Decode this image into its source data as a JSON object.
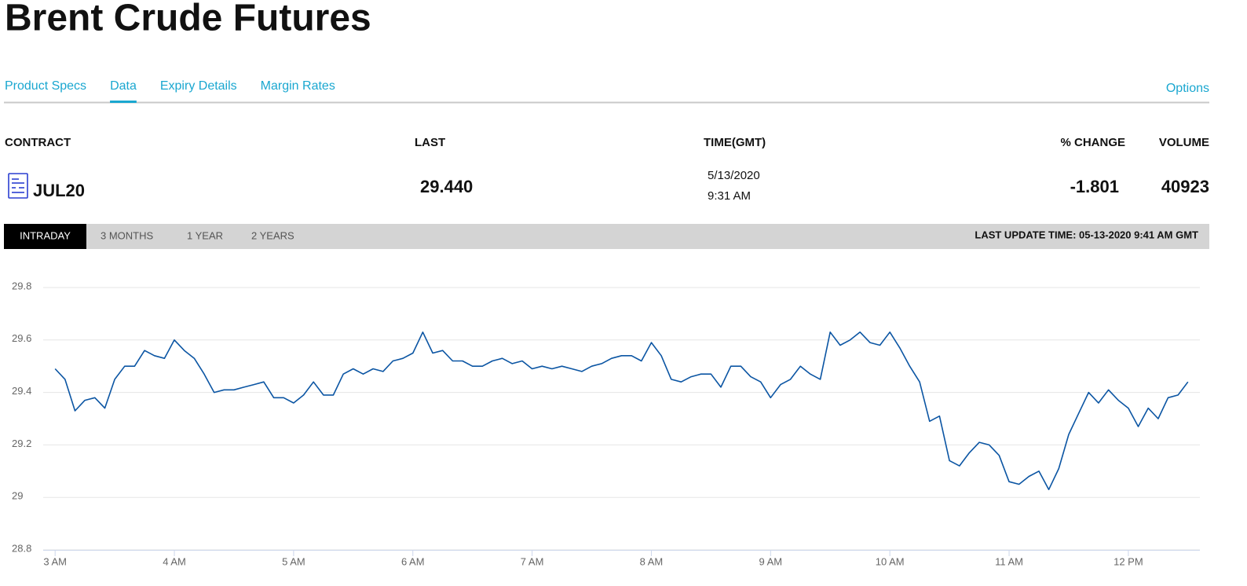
{
  "header": {
    "title": "Brent Crude Futures"
  },
  "tabs": [
    "Product Specs",
    "Data",
    "Expiry Details",
    "Margin Rates"
  ],
  "options": "Options",
  "table": {
    "headers": [
      "CONTRACT",
      "LAST",
      "TIME(GMT)",
      "% CHANGE",
      "VOLUME"
    ],
    "row": {
      "contract": "JUL20",
      "last": "29.440",
      "date": "5/13/2020",
      "time": "9:31 AM",
      "change": "-1.801",
      "volume": "40923"
    }
  },
  "ranges": [
    "INTRADAY",
    "3 MONTHS",
    "1 YEAR",
    "2 YEARS"
  ],
  "last_update": "LAST UPDATE TIME: 05-13-2020 9:41 AM GMT",
  "chart_data": {
    "type": "line",
    "color": "#0b55a3",
    "grid": true,
    "x": [
      180,
      185,
      190,
      195,
      200,
      205,
      210,
      215,
      220,
      225,
      230,
      235,
      240,
      245,
      250,
      255,
      260,
      265,
      270,
      275,
      280,
      285,
      290,
      295,
      300,
      305,
      310,
      315,
      320,
      325,
      330,
      335,
      340,
      345,
      350,
      355,
      360,
      365,
      370,
      375,
      380,
      385,
      390,
      395,
      400,
      405,
      410,
      415,
      420,
      425,
      430,
      435,
      440,
      445,
      450,
      455,
      460,
      465,
      470,
      475,
      480,
      485,
      490,
      495,
      500,
      505,
      510,
      515,
      520,
      525,
      530,
      535,
      540,
      545,
      550,
      555,
      560,
      565,
      570,
      575,
      580,
      585,
      590,
      595,
      600,
      605,
      610,
      615,
      620,
      625,
      630,
      635,
      640,
      645,
      650,
      655,
      660,
      665,
      670,
      675,
      680,
      685,
      690,
      695,
      700,
      705,
      710,
      715,
      720,
      725,
      730,
      735,
      740,
      745,
      750
    ],
    "values": [
      29.49,
      29.45,
      29.33,
      29.37,
      29.38,
      29.34,
      29.45,
      29.5,
      29.5,
      29.56,
      29.54,
      29.53,
      29.6,
      29.56,
      29.53,
      29.47,
      29.4,
      29.41,
      29.41,
      29.42,
      29.43,
      29.44,
      29.38,
      29.38,
      29.36,
      29.39,
      29.44,
      29.39,
      29.39,
      29.47,
      29.49,
      29.47,
      29.49,
      29.48,
      29.52,
      29.53,
      29.55,
      29.63,
      29.55,
      29.56,
      29.52,
      29.52,
      29.5,
      29.5,
      29.52,
      29.53,
      29.51,
      29.52,
      29.49,
      29.5,
      29.49,
      29.5,
      29.49,
      29.48,
      29.5,
      29.51,
      29.53,
      29.54,
      29.54,
      29.52,
      29.59,
      29.54,
      29.45,
      29.44,
      29.46,
      29.47,
      29.47,
      29.42,
      29.5,
      29.5,
      29.46,
      29.44,
      29.38,
      29.43,
      29.45,
      29.5,
      29.47,
      29.45,
      29.63,
      29.58,
      29.6,
      29.63,
      29.59,
      29.58,
      29.63,
      29.57,
      29.5,
      29.44,
      29.29,
      29.31,
      29.14,
      29.12,
      29.17,
      29.21,
      29.2,
      29.16,
      29.06,
      29.05,
      29.08,
      29.1,
      29.03,
      29.11,
      29.24,
      29.32,
      29.4,
      29.36,
      29.41,
      29.37,
      29.34,
      29.27,
      29.34,
      29.3,
      29.38,
      29.39,
      29.44
    ],
    "xlim": [
      174,
      756
    ],
    "xticks": [
      {
        "value": 180,
        "label": "3 AM"
      },
      {
        "value": 240,
        "label": "4 AM"
      },
      {
        "value": 300,
        "label": "5 AM"
      },
      {
        "value": 360,
        "label": "6 AM"
      },
      {
        "value": 420,
        "label": "7 AM"
      },
      {
        "value": 480,
        "label": "8 AM"
      },
      {
        "value": 540,
        "label": "9 AM"
      },
      {
        "value": 600,
        "label": "10 AM"
      },
      {
        "value": 660,
        "label": "11 AM"
      },
      {
        "value": 720,
        "label": "12 PM"
      }
    ],
    "ylim": [
      28.8,
      29.8
    ],
    "yticks": [
      28.8,
      29,
      29.2,
      29.4,
      29.6,
      29.8
    ]
  }
}
